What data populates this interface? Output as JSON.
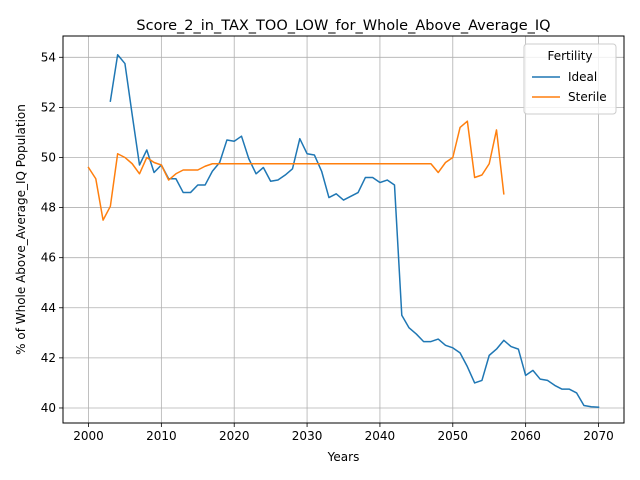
{
  "chart_data": {
    "type": "line",
    "title": "Score_2_in_TAX_TOO_LOW_for_Whole_Above_Average_IQ",
    "xlabel": "Years",
    "ylabel": "% of Whole Above_Average_IQ Population",
    "xlim": [
      1996.5,
      2073.5
    ],
    "ylim": [
      39.4,
      54.85
    ],
    "xticks": [
      2000,
      2010,
      2020,
      2030,
      2040,
      2050,
      2060,
      2070
    ],
    "yticks": [
      40,
      42,
      44,
      46,
      48,
      50,
      52,
      54
    ],
    "grid": true,
    "legend": {
      "title": "Fertility",
      "placement": "top-right"
    },
    "series": [
      {
        "name": "Ideal",
        "color": "#1f77b4",
        "x": [
          2003,
          2004,
          2005,
          2006,
          2007,
          2008,
          2009,
          2010,
          2011,
          2012,
          2013,
          2014,
          2015,
          2016,
          2017,
          2018,
          2019,
          2020,
          2021,
          2022,
          2023,
          2024,
          2025,
          2026,
          2027,
          2028,
          2029,
          2030,
          2031,
          2032,
          2033,
          2034,
          2035,
          2036,
          2037,
          2038,
          2039,
          2040,
          2041,
          2042,
          2043,
          2044,
          2045,
          2046,
          2047,
          2048,
          2049,
          2050,
          2051,
          2052,
          2053,
          2054,
          2055,
          2056,
          2057,
          2058,
          2059,
          2060,
          2061,
          2062,
          2063,
          2064,
          2065,
          2066,
          2067,
          2068,
          2069,
          2070
        ],
        "y": [
          52.25,
          54.1,
          53.75,
          51.7,
          49.7,
          50.3,
          49.4,
          49.7,
          49.15,
          49.15,
          48.6,
          48.6,
          48.9,
          48.9,
          49.45,
          49.8,
          50.7,
          50.65,
          50.85,
          49.95,
          49.35,
          49.6,
          49.05,
          49.1,
          49.3,
          49.55,
          50.75,
          50.15,
          50.1,
          49.45,
          48.4,
          48.55,
          48.3,
          48.45,
          48.6,
          49.2,
          49.2,
          49.0,
          49.1,
          48.9,
          43.7,
          43.2,
          42.95,
          42.65,
          42.65,
          42.75,
          42.5,
          42.4,
          42.2,
          41.65,
          41.0,
          41.1,
          42.1,
          42.35,
          42.7,
          42.45,
          42.35,
          41.3,
          41.5,
          41.15,
          41.1,
          40.9,
          40.75,
          40.75,
          40.6,
          40.1,
          40.05,
          40.03
        ]
      },
      {
        "name": "Sterile",
        "color": "#ff7f0e",
        "x": [
          2000,
          2001,
          2002,
          2003,
          2004,
          2005,
          2006,
          2007,
          2008,
          2009,
          2010,
          2011,
          2012,
          2013,
          2014,
          2015,
          2016,
          2017,
          2018,
          2019,
          2020,
          2021,
          2022,
          2023,
          2024,
          2025,
          2026,
          2027,
          2028,
          2029,
          2030,
          2031,
          2032,
          2033,
          2034,
          2035,
          2036,
          2037,
          2038,
          2039,
          2040,
          2041,
          2042,
          2043,
          2044,
          2045,
          2046,
          2047,
          2048,
          2049,
          2050,
          2051,
          2052,
          2053,
          2054,
          2055,
          2056,
          2057
        ],
        "y": [
          49.6,
          49.15,
          47.5,
          48.05,
          50.15,
          50.0,
          49.75,
          49.35,
          50.0,
          49.8,
          49.7,
          49.1,
          49.35,
          49.5,
          49.5,
          49.5,
          49.65,
          49.75,
          49.75,
          49.75,
          49.75,
          49.75,
          49.75,
          49.75,
          49.75,
          49.75,
          49.75,
          49.75,
          49.75,
          49.75,
          49.75,
          49.75,
          49.75,
          49.75,
          49.75,
          49.75,
          49.75,
          49.75,
          49.75,
          49.75,
          49.75,
          49.75,
          49.75,
          49.75,
          49.75,
          49.75,
          49.75,
          49.75,
          49.4,
          49.8,
          50.0,
          51.2,
          51.45,
          49.2,
          49.3,
          49.75,
          51.1,
          48.55
        ]
      }
    ]
  }
}
